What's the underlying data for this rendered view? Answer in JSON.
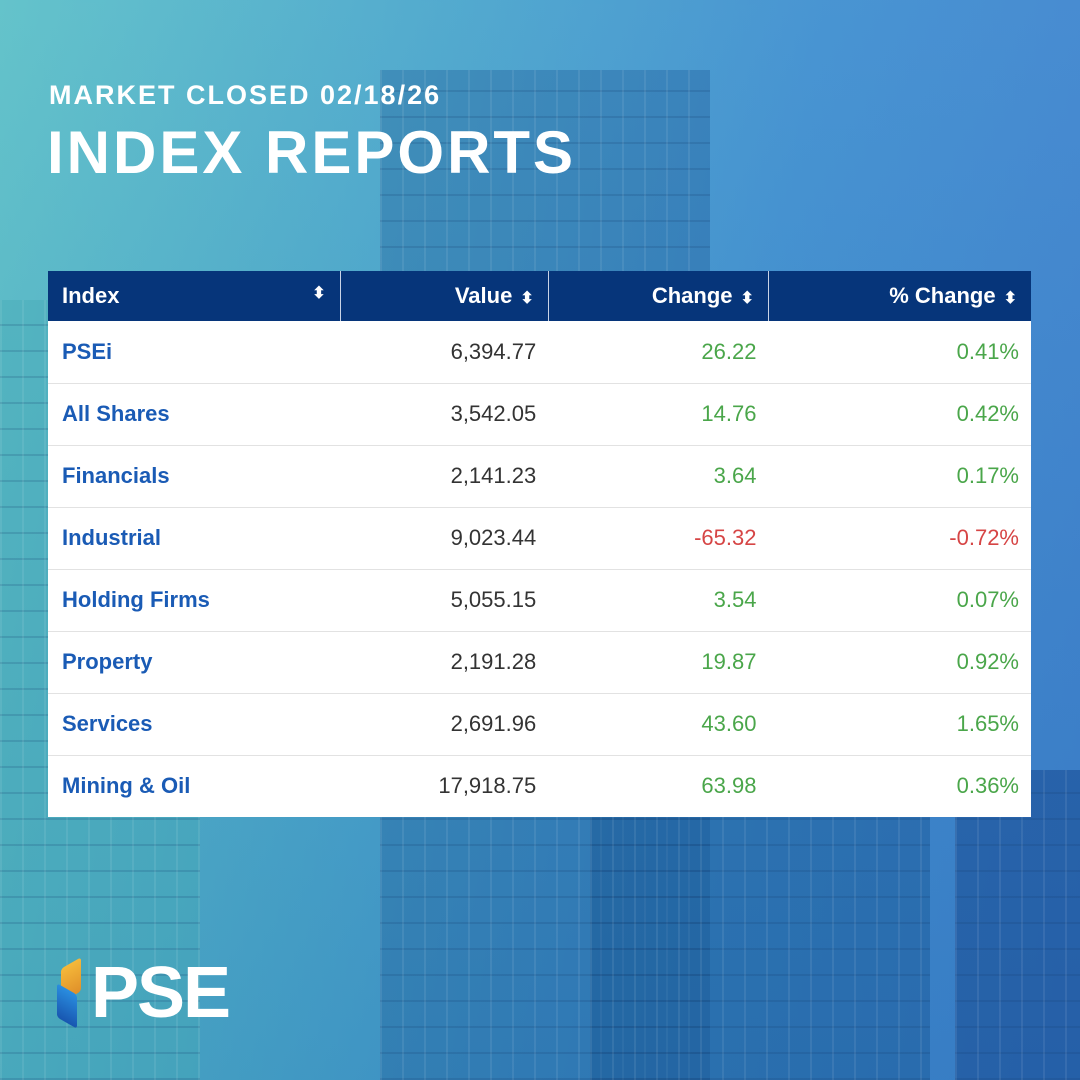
{
  "header": {
    "subtitle": "MARKET CLOSED 02/18/26",
    "title": "INDEX REPORTS"
  },
  "table": {
    "columns": [
      "Index",
      "Value",
      "Change",
      "% Change"
    ],
    "sort_icon": "sort-up-down-icon",
    "rows": [
      {
        "name": "PSEi",
        "value": "6,394.77",
        "change": "26.22",
        "pct": "0.41%",
        "dir": "up"
      },
      {
        "name": "All Shares",
        "value": "3,542.05",
        "change": "14.76",
        "pct": "0.42%",
        "dir": "up"
      },
      {
        "name": "Financials",
        "value": "2,141.23",
        "change": "3.64",
        "pct": "0.17%",
        "dir": "up"
      },
      {
        "name": "Industrial",
        "value": "9,023.44",
        "change": "-65.32",
        "pct": "-0.72%",
        "dir": "dn"
      },
      {
        "name": "Holding Firms",
        "value": "5,055.15",
        "change": "3.54",
        "pct": "0.07%",
        "dir": "up"
      },
      {
        "name": "Property",
        "value": "2,191.28",
        "change": "19.87",
        "pct": "0.92%",
        "dir": "up"
      },
      {
        "name": "Services",
        "value": "2,691.96",
        "change": "43.60",
        "pct": "1.65%",
        "dir": "up"
      },
      {
        "name": "Mining & Oil",
        "value": "17,918.75",
        "change": "63.98",
        "pct": "0.36%",
        "dir": "up"
      }
    ]
  },
  "colors": {
    "header_bg": "#06357a",
    "up": "#4aa64a",
    "down": "#d64545",
    "link": "#1a5bb5"
  },
  "logo": {
    "text": "PSE"
  }
}
